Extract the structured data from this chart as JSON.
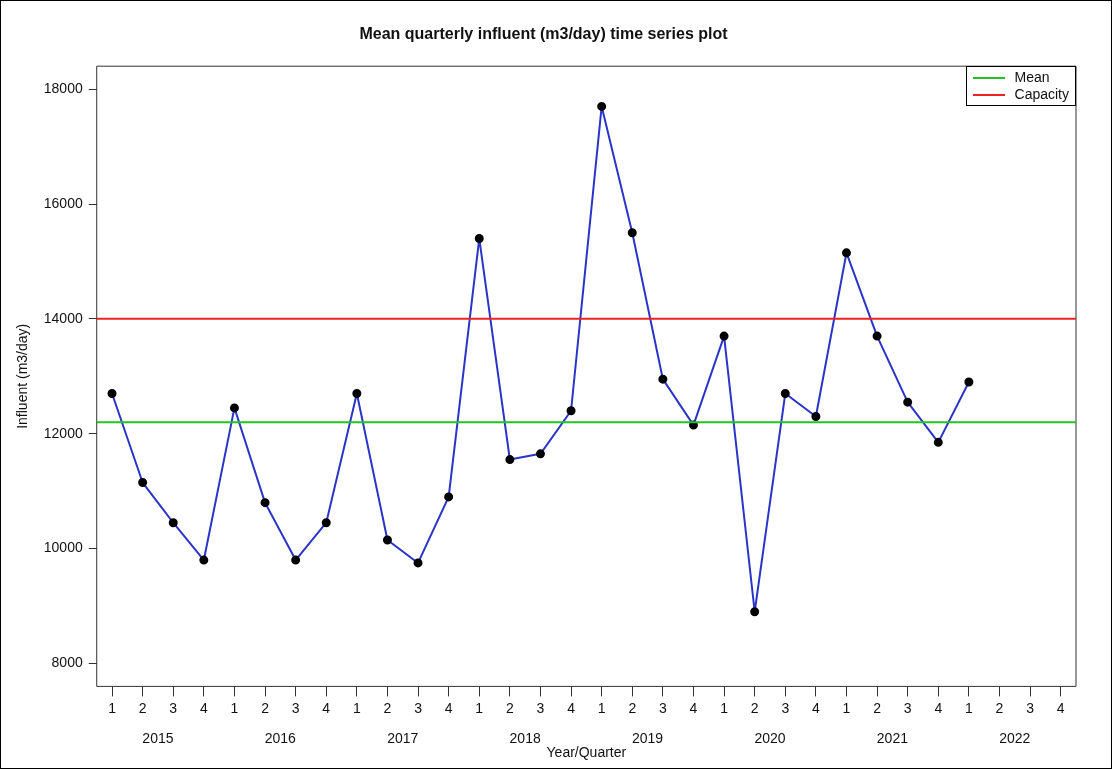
{
  "chart_data": {
    "type": "line",
    "title": "Mean quarterly influent (m3/day) time series plot",
    "xlabel": "Year/Quarter",
    "ylabel": "Influent (m3/day)",
    "categories": [
      "1",
      "2",
      "3",
      "4",
      "1",
      "2",
      "3",
      "4",
      "1",
      "2",
      "3",
      "4",
      "1",
      "2",
      "3",
      "4",
      "1",
      "2",
      "3",
      "4",
      "1",
      "2",
      "3",
      "4",
      "1",
      "2",
      "3",
      "4",
      "1",
      "2",
      "3",
      "4"
    ],
    "series": [
      {
        "color": "#2a35c8",
        "values": [
          12700,
          11150,
          10450,
          9800,
          12450,
          10800,
          9800,
          10450,
          12700,
          10150,
          9750,
          10900,
          15400,
          11550,
          11650,
          12400,
          17700,
          15500,
          12950,
          12150,
          13700,
          8900,
          12700,
          12300,
          15150,
          13700,
          12550,
          11850,
          12900,
          null,
          null,
          null
        ]
      }
    ],
    "ylim": [
      7600,
      18400
    ],
    "yticks": [
      8000,
      10000,
      12000,
      14000,
      16000,
      18000
    ],
    "ref_lines": [
      {
        "axis": "y",
        "value": 12200,
        "label": "Mean",
        "color": "#22c422"
      },
      {
        "axis": "y",
        "value": 14000,
        "label": "Capacity",
        "color": "#ee2222"
      }
    ],
    "annotations": [
      "2015",
      "2016",
      "2017",
      "2018",
      "2019",
      "2020",
      "2021",
      "2022"
    ],
    "legend": "top right",
    "marker": "circle",
    "line_style": "solid",
    "grid": false
  }
}
